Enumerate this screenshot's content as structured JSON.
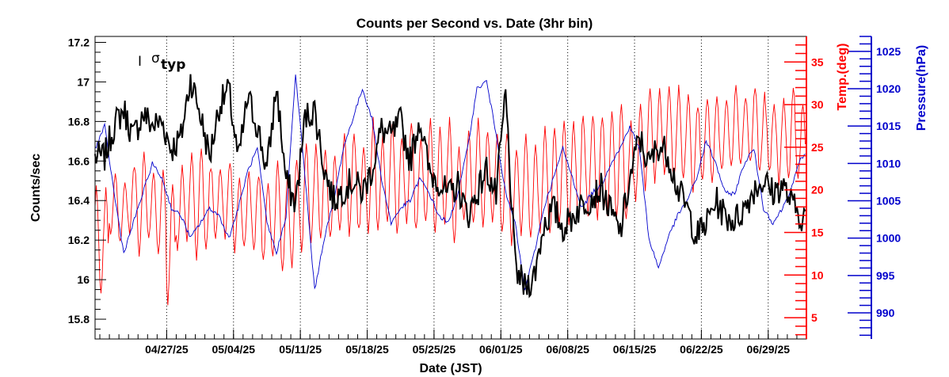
{
  "chart_data": {
    "type": "line",
    "title": "Counts per Second vs. Date (3hr bin)",
    "xlabel": "Date (JST)",
    "ylabel": "Counts/sec",
    "y2label": "Temp.(deg)",
    "y3label": "Pressure(hPa)",
    "x_range": [
      "2025-04-19T12:00",
      "2025-07-03T00:00"
    ],
    "ylim": [
      15.7,
      17.23
    ],
    "y2lim": [
      2.5,
      38.0
    ],
    "y3lim": [
      986.5,
      1027.0
    ],
    "x_ticks": [
      "04/27/25",
      "05/04/25",
      "05/11/25",
      "05/18/25",
      "05/25/25",
      "06/01/25",
      "06/08/25",
      "06/15/25",
      "06/22/25",
      "06/29/25"
    ],
    "y_ticks": [
      "15.8",
      "16",
      "16.2",
      "16.4",
      "16.6",
      "16.8",
      "17",
      "17.2"
    ],
    "y2_ticks": [
      "5",
      "10",
      "15",
      "20",
      "25",
      "30",
      "35"
    ],
    "y3_ticks": [
      "990",
      "995",
      "1000",
      "1005",
      "1010",
      "1015",
      "1020",
      "1025"
    ],
    "vertical_gridlines": "dotted at each date tick",
    "annotation": {
      "bar": "I",
      "symbol": "σ",
      "subscript": "typ"
    },
    "colors": {
      "counts": "#000000",
      "temperature": "#ff0000",
      "pressure": "#0000cc"
    },
    "series": [
      {
        "key": "counts",
        "axis": "left",
        "points": [
          [
            "04/20",
            16.62
          ],
          [
            "04/21",
            16.78
          ],
          [
            "04/22",
            16.86
          ],
          [
            "04/23",
            16.72
          ],
          [
            "04/24",
            16.84
          ],
          [
            "04/25",
            16.78
          ],
          [
            "04/26",
            16.8
          ],
          [
            "04/27",
            16.66
          ],
          [
            "04/28",
            16.72
          ],
          [
            "04/29",
            17.02
          ],
          [
            "04/30",
            16.84
          ],
          [
            "05/01",
            16.62
          ],
          [
            "05/02",
            16.88
          ],
          [
            "05/03",
            16.96
          ],
          [
            "05/04",
            16.6
          ],
          [
            "05/05",
            16.92
          ],
          [
            "05/06",
            16.78
          ],
          [
            "05/07",
            16.55
          ],
          [
            "05/08",
            16.98
          ],
          [
            "05/09",
            16.5
          ],
          [
            "05/10",
            16.38
          ],
          [
            "05/11",
            16.82
          ],
          [
            "05/12",
            16.86
          ],
          [
            "05/13",
            16.56
          ],
          [
            "05/14",
            16.4
          ],
          [
            "05/15",
            16.46
          ],
          [
            "05/16",
            16.5
          ],
          [
            "05/17",
            16.44
          ],
          [
            "05/18",
            16.56
          ],
          [
            "05/19",
            16.76
          ],
          [
            "05/20",
            16.72
          ],
          [
            "05/21",
            16.8
          ],
          [
            "05/22",
            16.6
          ],
          [
            "05/23",
            16.82
          ],
          [
            "05/24",
            16.54
          ],
          [
            "05/25",
            16.5
          ],
          [
            "05/26",
            16.42
          ],
          [
            "05/27",
            16.48
          ],
          [
            "05/28",
            16.32
          ],
          [
            "05/29",
            16.44
          ],
          [
            "05/30",
            16.56
          ],
          [
            "05/31",
            16.42
          ],
          [
            "06/01",
            16.94
          ],
          [
            "06/02",
            16.06
          ],
          [
            "06/03",
            15.96
          ],
          [
            "06/04",
            16.02
          ],
          [
            "06/05",
            16.28
          ],
          [
            "06/06",
            16.36
          ],
          [
            "06/07",
            16.26
          ],
          [
            "06/08",
            16.32
          ],
          [
            "06/09",
            16.38
          ],
          [
            "06/10",
            16.42
          ],
          [
            "06/11",
            16.46
          ],
          [
            "06/12",
            16.34
          ],
          [
            "06/13",
            16.24
          ],
          [
            "06/14",
            16.5
          ],
          [
            "06/15",
            16.72
          ],
          [
            "06/16",
            16.58
          ],
          [
            "06/17",
            16.68
          ],
          [
            "06/18",
            16.64
          ],
          [
            "06/19",
            16.46
          ],
          [
            "06/20",
            16.36
          ],
          [
            "06/21",
            16.22
          ],
          [
            "06/22",
            16.28
          ],
          [
            "06/23",
            16.4
          ],
          [
            "06/24",
            16.32
          ],
          [
            "06/25",
            16.3
          ],
          [
            "06/26",
            16.36
          ],
          [
            "06/27",
            16.46
          ],
          [
            "06/28",
            16.5
          ],
          [
            "06/29",
            16.44
          ],
          [
            "06/30",
            16.48
          ],
          [
            "07/01",
            16.38
          ],
          [
            "07/02",
            16.32
          ]
        ]
      },
      {
        "key": "temperature",
        "axis": "right1",
        "daily_min": [
          8,
          15,
          14,
          15,
          12,
          14,
          13,
          7,
          13,
          14,
          12,
          13,
          14,
          14,
          13,
          13,
          13,
          12,
          12,
          11,
          11,
          13,
          14,
          14,
          14,
          15,
          15,
          15,
          15,
          15,
          16,
          15,
          16,
          15,
          16,
          15,
          16,
          14,
          16,
          16,
          16,
          16,
          15,
          14,
          15,
          14,
          15,
          15,
          16,
          16,
          16,
          17,
          17,
          17,
          17,
          16,
          19,
          20,
          21,
          22,
          21,
          21,
          20,
          21,
          21,
          22,
          23,
          23,
          23,
          22,
          22,
          21,
          21,
          21
        ],
        "daily_max": [
          20,
          22,
          21,
          23,
          25,
          22,
          22,
          21,
          23,
          24,
          25,
          23,
          23,
          23,
          21,
          22,
          22,
          21,
          23,
          21,
          24,
          25,
          25,
          25,
          24,
          27,
          27,
          25,
          28,
          26,
          28,
          26,
          28,
          26,
          28,
          27,
          28,
          25,
          27,
          28,
          27,
          27,
          27,
          25,
          26,
          25,
          27,
          27,
          28,
          28,
          29,
          29,
          29,
          29,
          30,
          28,
          30,
          32,
          32,
          32,
          32,
          31,
          30,
          31,
          31,
          31,
          32,
          31,
          32,
          31,
          30,
          31,
          32,
          30
        ]
      },
      {
        "key": "pressure",
        "axis": "right2",
        "points": [
          [
            "04/19",
            1012
          ],
          [
            "04/20",
            1015
          ],
          [
            "04/21",
            1006
          ],
          [
            "04/22",
            998
          ],
          [
            "04/23",
            1002
          ],
          [
            "04/24",
            1006
          ],
          [
            "04/25",
            1010
          ],
          [
            "04/26",
            1008
          ],
          [
            "04/27",
            1004
          ],
          [
            "04/28",
            1003
          ],
          [
            "04/29",
            1000
          ],
          [
            "04/30",
            1002
          ],
          [
            "05/01",
            1004
          ],
          [
            "05/02",
            1003
          ],
          [
            "05/03",
            1000
          ],
          [
            "05/04",
            1004
          ],
          [
            "05/05",
            1009
          ],
          [
            "05/06",
            1012
          ],
          [
            "05/07",
            1002
          ],
          [
            "05/08",
            998
          ],
          [
            "05/09",
            1003
          ],
          [
            "05/10",
            1022
          ],
          [
            "05/11",
            1008
          ],
          [
            "05/12",
            993
          ],
          [
            "05/13",
            1000
          ],
          [
            "05/14",
            1005
          ],
          [
            "05/15",
            1012
          ],
          [
            "05/16",
            1016
          ],
          [
            "05/17",
            1020
          ],
          [
            "05/18",
            1016
          ],
          [
            "05/19",
            1008
          ],
          [
            "05/20",
            1002
          ],
          [
            "05/21",
            1004
          ],
          [
            "05/22",
            1005
          ],
          [
            "05/23",
            1008
          ],
          [
            "05/24",
            1006
          ],
          [
            "05/25",
            1003
          ],
          [
            "05/26",
            1002
          ],
          [
            "05/27",
            1006
          ],
          [
            "05/28",
            1012
          ],
          [
            "05/29",
            1020
          ],
          [
            "05/30",
            1021
          ],
          [
            "05/31",
            1014
          ],
          [
            "06/01",
            1006
          ],
          [
            "06/02",
            1002
          ],
          [
            "06/03",
            993
          ],
          [
            "06/04",
            998
          ],
          [
            "06/05",
            1004
          ],
          [
            "06/06",
            1008
          ],
          [
            "06/07",
            1012
          ],
          [
            "06/08",
            1008
          ],
          [
            "06/09",
            1004
          ],
          [
            "06/10",
            1006
          ],
          [
            "06/11",
            1007
          ],
          [
            "06/12",
            1010
          ],
          [
            "06/13",
            1012
          ],
          [
            "06/14",
            1015
          ],
          [
            "06/15",
            1012
          ],
          [
            "06/16",
            1000
          ],
          [
            "06/17",
            996
          ],
          [
            "06/18",
            1000
          ],
          [
            "06/19",
            1003
          ],
          [
            "06/20",
            1005
          ],
          [
            "06/21",
            1008
          ],
          [
            "06/22",
            1013
          ],
          [
            "06/23",
            1010
          ],
          [
            "06/24",
            1006
          ],
          [
            "06/25",
            1006
          ],
          [
            "06/26",
            1010
          ],
          [
            "06/27",
            1012
          ],
          [
            "06/28",
            1004
          ],
          [
            "06/29",
            1002
          ],
          [
            "06/30",
            1004
          ],
          [
            "07/01",
            1007
          ],
          [
            "07/02",
            1011
          ]
        ]
      }
    ]
  }
}
